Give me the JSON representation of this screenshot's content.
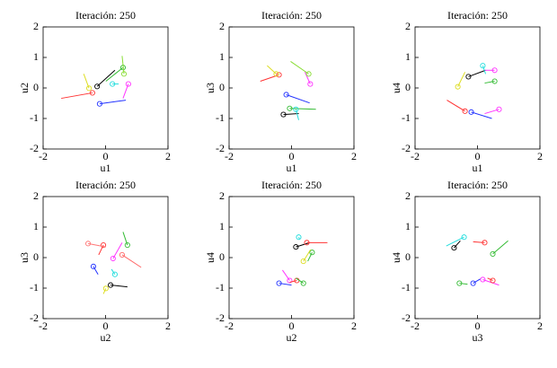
{
  "chart_data": [
    {
      "type": "scatter",
      "title": "Iteración: 250",
      "xlabel": "u1",
      "ylabel": "u2",
      "xlim": [
        -2,
        2
      ],
      "ylim": [
        -2,
        2
      ],
      "xticks": [
        -2,
        0,
        2
      ],
      "yticks": [
        -2,
        -1,
        0,
        1,
        2
      ],
      "series": [
        {
          "color": "#000000",
          "x": [
            -0.27,
            0.3
          ],
          "values": [
            0.05,
            0.58
          ]
        },
        {
          "color": "#ff3333",
          "x": [
            -0.42,
            -1.42
          ],
          "values": [
            -0.16,
            -0.34
          ]
        },
        {
          "color": "#2233ff",
          "x": [
            -0.19,
            0.65
          ],
          "values": [
            -0.52,
            -0.4
          ]
        },
        {
          "color": "#ff33ff",
          "x": [
            0.73,
            0.56
          ],
          "values": [
            0.13,
            -0.34
          ]
        },
        {
          "color": "#33bb33",
          "x": [
            0.56,
            0.01
          ],
          "values": [
            0.67,
            0.22
          ]
        },
        {
          "color": "#22dddd",
          "x": [
            0.22,
            0.42
          ],
          "values": [
            0.13,
            0.13
          ]
        },
        {
          "color": "#dddd22",
          "x": [
            -0.53,
            -0.7
          ],
          "values": [
            -0.01,
            0.46
          ]
        },
        {
          "color": "#88dd33",
          "x": [
            0.59,
            0.53
          ],
          "values": [
            0.46,
            1.05
          ]
        }
      ]
    },
    {
      "type": "scatter",
      "title": "Iteración: 250",
      "xlabel": "u1",
      "ylabel": "u3",
      "xlim": [
        -2,
        2
      ],
      "ylim": [
        -2,
        2
      ],
      "xticks": [
        -2,
        0,
        2
      ],
      "yticks": [
        -2,
        -1,
        0,
        1,
        2
      ],
      "series": [
        {
          "color": "#ff3333",
          "x": [
            -0.4,
            -1.0
          ],
          "values": [
            0.43,
            0.22
          ]
        },
        {
          "color": "#ff33ff",
          "x": [
            0.6,
            0.43
          ],
          "values": [
            0.13,
            0.52
          ]
        },
        {
          "color": "#2233ff",
          "x": [
            -0.17,
            0.58
          ],
          "values": [
            -0.22,
            -0.49
          ]
        },
        {
          "color": "#000000",
          "x": [
            -0.26,
            0.23
          ],
          "values": [
            -0.87,
            -0.84
          ]
        },
        {
          "color": "#33bb33",
          "x": [
            -0.06,
            0.78
          ],
          "values": [
            -0.67,
            -0.7
          ]
        },
        {
          "color": "#22dddd",
          "x": [
            0.14,
            0.23
          ],
          "values": [
            -0.7,
            -1.05
          ]
        },
        {
          "color": "#dddd22",
          "x": [
            -0.49,
            -0.78
          ],
          "values": [
            0.46,
            0.73
          ]
        },
        {
          "color": "#88dd33",
          "x": [
            0.55,
            -0.03
          ],
          "values": [
            0.46,
            0.87
          ]
        }
      ]
    },
    {
      "type": "scatter",
      "title": "Iteración: 250",
      "xlabel": "u1",
      "ylabel": "u4",
      "xlim": [
        -2,
        2
      ],
      "ylim": [
        -2,
        2
      ],
      "xticks": [
        -2,
        0,
        2
      ],
      "yticks": [
        -2,
        -1,
        0,
        1,
        2
      ],
      "series": [
        {
          "color": "#000000",
          "x": [
            -0.29,
            0.26
          ],
          "values": [
            0.37,
            0.58
          ]
        },
        {
          "color": "#ff33ff",
          "x": [
            0.55,
            0.24
          ],
          "values": [
            0.58,
            0.58
          ]
        },
        {
          "color": "#22dddd",
          "x": [
            0.17,
            0.26
          ],
          "values": [
            0.73,
            0.46
          ]
        },
        {
          "color": "#33bb33",
          "x": [
            0.55,
            0.23
          ],
          "values": [
            0.22,
            0.16
          ]
        },
        {
          "color": "#dddd22",
          "x": [
            -0.63,
            -0.4
          ],
          "values": [
            0.04,
            0.52
          ]
        },
        {
          "color": "#ff3333",
          "x": [
            -0.4,
            -0.98
          ],
          "values": [
            -0.76,
            -0.4
          ]
        },
        {
          "color": "#2233ff",
          "x": [
            -0.2,
            0.46
          ],
          "values": [
            -0.79,
            -1.0
          ]
        },
        {
          "color": "#ff33ff",
          "x": [
            0.69,
            0.23
          ],
          "values": [
            -0.7,
            -0.84
          ]
        }
      ]
    },
    {
      "type": "scatter",
      "title": "Iteración: 250",
      "xlabel": "u2",
      "ylabel": "u3",
      "xlim": [
        -2,
        2
      ],
      "ylim": [
        -2,
        2
      ],
      "xticks": [
        -2,
        0,
        2
      ],
      "yticks": [
        -2,
        -1,
        0,
        1,
        2
      ],
      "series": [
        {
          "color": "#ff3333",
          "x": [
            -0.07,
            -0.22
          ],
          "values": [
            0.41,
            0.09
          ]
        },
        {
          "color": "#ff33ff",
          "x": [
            0.24,
            0.53
          ],
          "values": [
            -0.03,
            0.49
          ]
        },
        {
          "color": "#33bb33",
          "x": [
            0.7,
            0.56
          ],
          "values": [
            0.41,
            0.84
          ]
        },
        {
          "color": "#2233ff",
          "x": [
            -0.39,
            -0.24
          ],
          "values": [
            -0.29,
            -0.55
          ]
        },
        {
          "color": "#000000",
          "x": [
            0.16,
            0.7
          ],
          "values": [
            -0.9,
            -0.96
          ]
        },
        {
          "color": "#22dddd",
          "x": [
            0.3,
            0.19
          ],
          "values": [
            -0.55,
            -0.38
          ]
        },
        {
          "color": "#ff6666",
          "x": [
            0.53,
            1.14
          ],
          "values": [
            0.09,
            -0.32
          ]
        },
        {
          "color": "#dddd22",
          "x": [
            0.01,
            -0.07
          ],
          "values": [
            -1.01,
            -1.19
          ]
        },
        {
          "color": "#ff7777",
          "x": [
            -0.56,
            0.01
          ],
          "values": [
            0.46,
            0.35
          ]
        }
      ]
    },
    {
      "type": "scatter",
      "title": "Iteración: 250",
      "xlabel": "u2",
      "ylabel": "u4",
      "xlim": [
        -2,
        2
      ],
      "ylim": [
        -2,
        2
      ],
      "xticks": [
        -2,
        0,
        2
      ],
      "yticks": [
        -2,
        -1,
        0,
        1,
        2
      ],
      "series": [
        {
          "color": "#000000",
          "x": [
            0.14,
            0.58
          ],
          "values": [
            0.35,
            0.49
          ]
        },
        {
          "color": "#ff3333",
          "x": [
            0.49,
            1.15
          ],
          "values": [
            0.49,
            0.49
          ]
        },
        {
          "color": "#22dddd",
          "x": [
            0.23,
            0.26
          ],
          "values": [
            0.67,
            0.6
          ]
        },
        {
          "color": "#33bb33",
          "x": [
            0.66,
            0.52
          ],
          "values": [
            0.17,
            -0.12
          ]
        },
        {
          "color": "#dddd22",
          "x": [
            0.38,
            0.61
          ],
          "values": [
            -0.12,
            0.26
          ]
        },
        {
          "color": "#2233ff",
          "x": [
            -0.4,
            0.0
          ],
          "values": [
            -0.84,
            -0.9
          ]
        },
        {
          "color": "#ff33ff",
          "x": [
            -0.06,
            -0.29
          ],
          "values": [
            -0.75,
            -0.41
          ]
        },
        {
          "color": "#ff3333",
          "x": [
            0.17,
            -0.06
          ],
          "values": [
            -0.75,
            -0.81
          ]
        },
        {
          "color": "#33bb33",
          "x": [
            0.38,
            0.14
          ],
          "values": [
            -0.84,
            -0.67
          ]
        }
      ]
    },
    {
      "type": "scatter",
      "title": "Iteración: 250",
      "xlabel": "u3",
      "ylabel": "u4",
      "xlim": [
        -2,
        2
      ],
      "ylim": [
        -2,
        2
      ],
      "xticks": [
        -2,
        0,
        2
      ],
      "yticks": [
        -2,
        -1,
        0,
        1,
        2
      ],
      "series": [
        {
          "color": "#000000",
          "x": [
            -0.75,
            -0.55
          ],
          "values": [
            0.32,
            0.55
          ]
        },
        {
          "color": "#22dddd",
          "x": [
            -0.43,
            -1.0
          ],
          "values": [
            0.67,
            0.38
          ]
        },
        {
          "color": "#ff3333",
          "x": [
            0.23,
            -0.14
          ],
          "values": [
            0.49,
            0.52
          ]
        },
        {
          "color": "#33bb33",
          "x": [
            0.49,
            0.98
          ],
          "values": [
            0.12,
            0.55
          ]
        },
        {
          "color": "#2233ff",
          "x": [
            -0.14,
            0.09
          ],
          "values": [
            -0.84,
            -0.7
          ]
        },
        {
          "color": "#33bb33",
          "x": [
            -0.58,
            -0.32
          ],
          "values": [
            -0.84,
            -0.87
          ]
        },
        {
          "color": "#ff33ff",
          "x": [
            0.17,
            0.69
          ],
          "values": [
            -0.72,
            -0.9
          ]
        },
        {
          "color": "#ff3333",
          "x": [
            0.49,
            0.32
          ],
          "values": [
            -0.75,
            -0.67
          ]
        }
      ]
    }
  ]
}
